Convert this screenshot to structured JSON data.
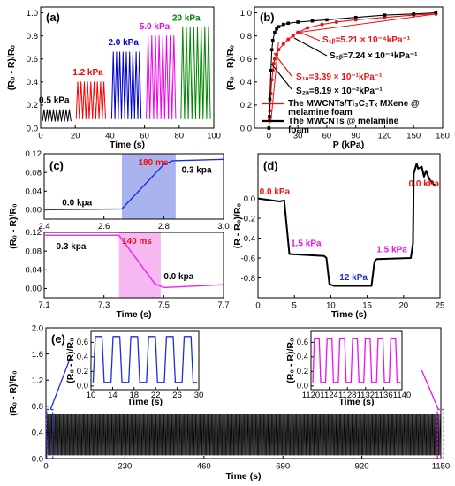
{
  "chart_data": [
    {
      "id": "a",
      "type": "line",
      "panel_label": "(a)",
      "xlabel": "Time (s)",
      "ylabel": "(R₀ - R)/R₀",
      "xlim": [
        0,
        100
      ],
      "ylim": [
        0,
        1.05
      ],
      "xticks": [
        0,
        20,
        40,
        60,
        80,
        100
      ],
      "yticks": [
        0.0,
        0.2,
        0.4,
        0.6,
        0.8,
        1.0
      ],
      "yticklabels": [
        "0.0",
        "0.2",
        "0.4",
        "0.6",
        "0.8",
        "1.0"
      ],
      "series": [
        {
          "label": "0.5 kPa",
          "color": "#000000",
          "x_range": [
            1,
            17.5
          ],
          "low": 0.06,
          "high": 0.16,
          "cycles": 9
        },
        {
          "label": "1.2 kPa",
          "color": "#ff0000",
          "x_range": [
            20.5,
            37.5
          ],
          "low": 0.08,
          "high": 0.4,
          "cycles": 9
        },
        {
          "label": "2.0 kPa",
          "color": "#0000cc",
          "x_range": [
            41,
            58
          ],
          "low": 0.08,
          "high": 0.66,
          "cycles": 9
        },
        {
          "label": "5.0 kPa",
          "color": "#ee00ee",
          "x_range": [
            61,
            78
          ],
          "low": 0.08,
          "high": 0.8,
          "cycles": 8
        },
        {
          "label": "20 kPa",
          "color": "#008800",
          "x_range": [
            81,
            98
          ],
          "low": 0.08,
          "high": 0.88,
          "cycles": 8
        }
      ]
    },
    {
      "id": "b",
      "type": "line",
      "panel_label": "(b)",
      "xlabel": "P (kPa)",
      "ylabel": "(R₀ - R)/R₀",
      "xlim": [
        -15,
        180
      ],
      "ylim": [
        0,
        1.05
      ],
      "xticks": [
        0,
        30,
        60,
        90,
        120,
        150,
        180
      ],
      "yticks": [
        0.0,
        0.2,
        0.4,
        0.6,
        0.8,
        1.0
      ],
      "yticklabels": [
        "0.0",
        "0.2",
        "0.4",
        "0.6",
        "0.8",
        "1.0"
      ],
      "series": [
        {
          "name": "The MWCNTs/Ti₃C₂Tₓ MXene @ melamine foam",
          "color": "#ee1111",
          "x": [
            0,
            0.5,
            1,
            2,
            3,
            4,
            5,
            6,
            8,
            10,
            15,
            20,
            25,
            30,
            40,
            55,
            70,
            90,
            120,
            150,
            173
          ],
          "y": [
            0,
            0.07,
            0.15,
            0.3,
            0.42,
            0.5,
            0.56,
            0.6,
            0.64,
            0.68,
            0.73,
            0.77,
            0.8,
            0.83,
            0.87,
            0.9,
            0.92,
            0.94,
            0.96,
            0.98,
            0.99
          ]
        },
        {
          "name": "The MWCNTs @ melamine foam",
          "color": "#000000",
          "x": [
            0,
            0.5,
            1,
            2,
            3,
            4,
            6,
            8,
            10,
            15,
            20,
            30,
            45,
            60,
            90,
            120,
            150,
            173
          ],
          "y": [
            0,
            0.1,
            0.25,
            0.5,
            0.68,
            0.76,
            0.83,
            0.86,
            0.88,
            0.9,
            0.91,
            0.92,
            0.93,
            0.94,
            0.96,
            0.98,
            0.99,
            1.0
          ]
        }
      ],
      "annotations": [
        {
          "text": "S₁ᵦ=5.21 × 10⁻⁴kPa⁻¹",
          "color": "#ee1111"
        },
        {
          "text": "S₂ᵦ=7.24 × 10⁻⁴kPa⁻¹",
          "color": "#000000"
        },
        {
          "text": "S₁ₐ=3.39 × 10⁻¹kPa⁻¹",
          "color": "#ee1111"
        },
        {
          "text": "S₂ₐ=8.19 × 10⁻²kPa⁻¹",
          "color": "#000000"
        }
      ]
    },
    {
      "id": "c_top",
      "type": "line",
      "panel_label": "(c)",
      "xlim": [
        2.4,
        3.0
      ],
      "ylim": [
        -0.02,
        0.12
      ],
      "xticks": [
        2.4,
        2.6,
        2.8,
        3.0
      ],
      "xticklabels": [
        "2.4",
        "2.6",
        "2.8",
        "3.0"
      ],
      "yticks": [
        0.0,
        0.04,
        0.08,
        0.12
      ],
      "yticklabels": [
        "0.00",
        "0.04",
        "0.08",
        "0.12"
      ],
      "highlight": {
        "x": [
          2.66,
          2.84
        ],
        "color": "#a9b4ef"
      },
      "highlight_label": "180 ms",
      "series": [
        {
          "color": "#1a2fd6",
          "x": [
            2.4,
            2.66,
            2.8,
            2.83,
            3.0
          ],
          "y": [
            0.0,
            0.002,
            0.097,
            0.105,
            0.108
          ]
        }
      ],
      "annotations": [
        {
          "text": "0.0 kpa"
        },
        {
          "text": "0.3 kpa"
        }
      ]
    },
    {
      "id": "c_bottom",
      "type": "line",
      "xlabel": "Time (s)",
      "ylabel": "(R₀ - R)/R₀",
      "xlim": [
        7.1,
        7.7
      ],
      "ylim": [
        -0.02,
        0.12
      ],
      "xticks": [
        7.1,
        7.3,
        7.5,
        7.7
      ],
      "xticklabels": [
        "7.1",
        "7.3",
        "7.5",
        "7.7"
      ],
      "yticks": [
        0.0,
        0.04,
        0.08,
        0.12
      ],
      "yticklabels": [
        "0.00",
        "0.04",
        "0.08",
        "0.12"
      ],
      "highlight": {
        "x": [
          7.35,
          7.49
        ],
        "color": "#f7b8f2"
      },
      "highlight_label": "140 ms",
      "series": [
        {
          "color": "#ee22ee",
          "x": [
            7.1,
            7.35,
            7.47,
            7.5,
            7.7
          ],
          "y": [
            0.114,
            0.114,
            0.01,
            0.002,
            0.008
          ]
        }
      ],
      "annotations": [
        {
          "text": "0.3 kpa"
        },
        {
          "text": "0.0 kpa"
        }
      ]
    },
    {
      "id": "d",
      "type": "line",
      "panel_label": "(d)",
      "xlabel": "Time (s)",
      "ylabel": "(R - R₀)/R₀",
      "xlim": [
        0,
        25
      ],
      "ylim": [
        -1.0,
        0.45
      ],
      "xticks": [
        0,
        5,
        10,
        15,
        20,
        25
      ],
      "xticklabels": [
        "0",
        "5",
        "10",
        "15",
        "20",
        "25"
      ],
      "yticks": [
        0.0,
        -0.2,
        -0.4,
        -0.6,
        -0.8
      ],
      "yticklabels": [
        "0.0",
        "-0.2",
        "-0.4",
        "-0.6",
        "-0.8"
      ],
      "series": [
        {
          "color": "#000000",
          "x": [
            0,
            3,
            3.6,
            4.3,
            4.3,
            9.1,
            9.4,
            9.8,
            10.4,
            15.6,
            16.0,
            16.3,
            21.0,
            21.3,
            21.4,
            21.8,
            22.0,
            22.5,
            22.8,
            23.1,
            23.5,
            24,
            24.5
          ],
          "y": [
            0,
            -0.03,
            -0.02,
            -0.55,
            -0.56,
            -0.58,
            -0.6,
            -0.86,
            -0.88,
            -0.88,
            -0.64,
            -0.61,
            -0.6,
            -0.45,
            0.25,
            0.35,
            0.3,
            0.32,
            0.22,
            0.28,
            0.2,
            0.15,
            0.12
          ]
        }
      ],
      "annotations": [
        {
          "text": "0.0 kPa",
          "color": "#ee1111"
        },
        {
          "text": "1.5 kPa",
          "color": "#ee11ee"
        },
        {
          "text": "12 kPa",
          "color": "#1a2fd6"
        },
        {
          "text": "1.5 kPa",
          "color": "#ee11ee"
        },
        {
          "text": "0.0 kPa",
          "color": "#ee1111"
        }
      ]
    },
    {
      "id": "e",
      "type": "line",
      "panel_label": "(e)",
      "xlabel": "Time (s)",
      "ylabel": "(R₀ - R)/R₀",
      "xlim": [
        0,
        1150
      ],
      "ylim": [
        0,
        2.0
      ],
      "xticks": [
        0,
        230,
        460,
        690,
        920,
        1150
      ],
      "xticklabels": [
        "0",
        "230",
        "460",
        "690",
        "920",
        "1150"
      ],
      "yticks": [
        0.0,
        0.4,
        0.8,
        1.2,
        1.6,
        2.0
      ],
      "yticklabels": [
        "0.0",
        "0.4",
        "0.8",
        "1.2",
        "1.6",
        "2.0"
      ],
      "series": [
        {
          "color": "#000000",
          "low": 0.05,
          "high": 0.68
        }
      ],
      "insets": [
        {
          "xlabel": "Time (s)",
          "ylabel": "(R₀ - R)/R₀",
          "color": "#1a2fd6",
          "xlim": [
            10,
            30
          ],
          "xticks": [
            10,
            14,
            18,
            22,
            26,
            30
          ],
          "xticklabels": [
            "10",
            "14",
            "18",
            "22",
            "26",
            "30"
          ],
          "ylim": [
            -0.05,
            0.75
          ],
          "yticks": [
            0.0,
            0.2,
            0.4,
            0.6
          ],
          "yticklabels": [
            "0.0",
            "0.2",
            "0.4",
            "0.6"
          ],
          "low": 0.05,
          "high": 0.68,
          "period": 3.3
        },
        {
          "xlabel": "Time (s)",
          "ylabel": "(R₀ - R)/R₀",
          "color": "#ee11ee",
          "xlim": [
            1120,
            1140
          ],
          "xticks": [
            1120,
            1124,
            1128,
            1132,
            1136,
            1140
          ],
          "xticklabels": [
            "1120",
            "1124",
            "1128",
            "1132",
            "1136",
            "1140"
          ],
          "ylim": [
            -0.05,
            0.75
          ],
          "yticks": [
            0.0,
            0.2,
            0.4,
            0.6
          ],
          "yticklabels": [
            "0.0",
            "0.2",
            "0.4",
            "0.6"
          ],
          "low": 0.05,
          "high": 0.65,
          "period": 2.8
        }
      ]
    }
  ]
}
